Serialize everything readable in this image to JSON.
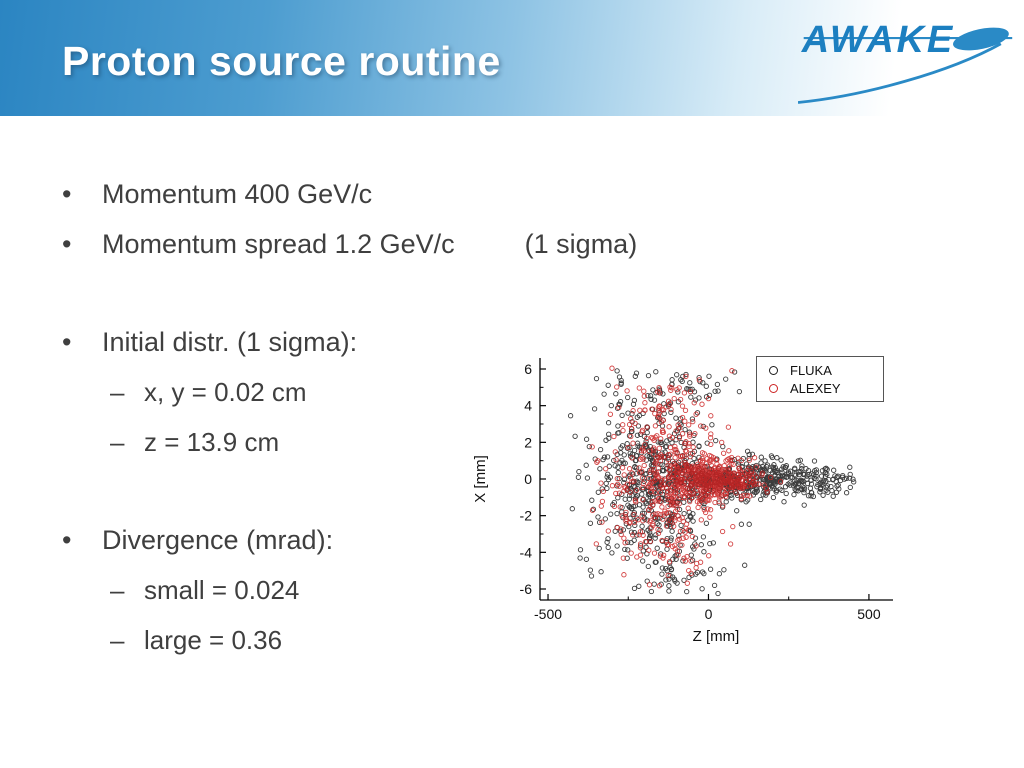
{
  "slide": {
    "title": "Proton source routine",
    "logo_text": "AWAKE",
    "marker_l1": "•",
    "marker_l2": "–",
    "bullets": [
      {
        "text": "Momentum 400 GeV/c"
      },
      {
        "text": "Momentum spread 1.2 GeV/c",
        "suffix": "(1 sigma)"
      },
      {
        "text": "Initial distr. (1 sigma):"
      },
      {
        "text": "x, y = 0.02 cm"
      },
      {
        "text": "z = 13.9 cm"
      },
      {
        "text": "Divergence (mrad):"
      },
      {
        "text": "small = 0.024"
      },
      {
        "text": "large = 0.36"
      }
    ],
    "colors": {
      "banner_blue": "#2b85c2",
      "body_text": "#3f3f3f",
      "logo_blue": "#1c7fc0"
    }
  },
  "chart_data": {
    "type": "scatter",
    "xlabel": "Z [mm]",
    "ylabel": "X [mm]",
    "z_range": [
      -525,
      575
    ],
    "x_range": [
      -6.6,
      6.6
    ],
    "z_ticks": [
      -500,
      0,
      500
    ],
    "z_minor_ticks": [
      -250,
      250
    ],
    "x_ticks": [
      6,
      4,
      2,
      0,
      -2,
      -4,
      -6
    ],
    "x_minor_ticks": [
      5,
      3,
      1,
      -1,
      -3,
      -5
    ],
    "grid": false,
    "legend_position": "top-right",
    "seed": 7,
    "series": [
      {
        "name": "FLUKA",
        "color": "#1a1a1a",
        "marker": "open-circle",
        "z_clip": [
          -430,
          465
        ],
        "x_clip": [
          -6.3,
          6.3
        ],
        "clusters": [
          {
            "n": 430,
            "z": [
              70,
              115
            ],
            "x": [
              0,
              0.55
            ]
          },
          {
            "n": 140,
            "z": [
              290,
              85
            ],
            "x": [
              0,
              0.45
            ]
          },
          {
            "n": 430,
            "z": [
              -160,
              85
            ],
            "x": [
              0,
              2.7
            ]
          },
          {
            "n": 90,
            "z": [
              -260,
              85
            ],
            "x": [
              0,
              3.6
            ]
          },
          {
            "n": 28,
            "z": [
              -70,
              75
            ],
            "x": [
              5.1,
              0.55
            ]
          },
          {
            "n": 28,
            "z": [
              -70,
              75
            ],
            "x": [
              -5.1,
              0.55
            ]
          }
        ]
      },
      {
        "name": "ALEXEY",
        "color": "#cc2222",
        "marker": "open-circle",
        "z_clip": [
          -385,
          225
        ],
        "x_clip": [
          -6.1,
          6.1
        ],
        "clusters": [
          {
            "n": 400,
            "z": [
              25,
              70
            ],
            "x": [
              0,
              0.5
            ]
          },
          {
            "n": 340,
            "z": [
              -120,
              75
            ],
            "x": [
              0,
              2.2
            ]
          },
          {
            "n": 70,
            "z": [
              -240,
              60
            ],
            "x": [
              0,
              3.2
            ]
          },
          {
            "n": 18,
            "z": [
              -80,
              60
            ],
            "x": [
              4.4,
              0.7
            ]
          },
          {
            "n": 18,
            "z": [
              -80,
              60
            ],
            "x": [
              -4.4,
              0.7
            ]
          }
        ]
      }
    ]
  }
}
